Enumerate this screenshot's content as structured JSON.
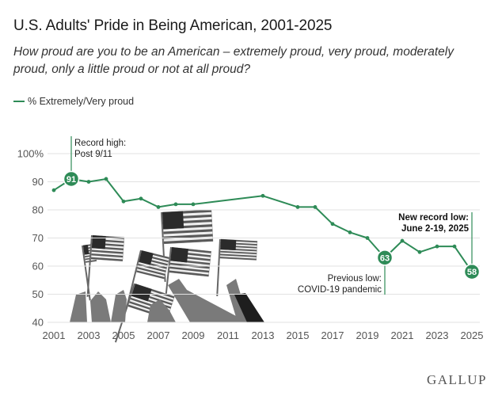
{
  "chart_data": {
    "type": "line",
    "title": "U.S. Adults' Pride in Being American, 2001-2025",
    "subtitle": "How proud are you to be an American – extremely proud, very proud, moderately proud, only a little proud or not at all proud?",
    "series": [
      {
        "name": "% Extremely/Very proud",
        "color": "#2e8b57",
        "x": [
          2001,
          2002,
          2003,
          2004,
          2005,
          2006,
          2007,
          2008,
          2009,
          2013,
          2015,
          2016,
          2017,
          2018,
          2019,
          2020,
          2021,
          2022,
          2023,
          2024,
          2025
        ],
        "values": [
          87,
          91,
          90,
          91,
          83,
          84,
          81,
          82,
          82,
          85,
          81,
          81,
          75,
          72,
          70,
          63,
          69,
          65,
          67,
          67,
          58
        ]
      }
    ],
    "x_ticks": [
      "2001",
      "2003",
      "2005",
      "2007",
      "2009",
      "2011",
      "2013",
      "2015",
      "2017",
      "2019",
      "2021",
      "2023",
      "2025"
    ],
    "y_ticks": [
      "100%",
      "90",
      "80",
      "70",
      "60",
      "50",
      "40"
    ],
    "xlim": [
      2001,
      2025
    ],
    "ylim": [
      40,
      100
    ],
    "highlighted_points": [
      {
        "year": 2002,
        "value": 91,
        "label": "91"
      },
      {
        "year": 2020,
        "value": 63,
        "label": "63"
      },
      {
        "year": 2025,
        "value": 58,
        "label": "58"
      }
    ],
    "annotations": {
      "record_high": [
        "Record high:",
        "Post 9/11"
      ],
      "previous_low": [
        "Previous low:",
        "COVID-19 pandemic"
      ],
      "new_record_low": [
        "New record low:",
        "June 2-19, 2025"
      ]
    }
  },
  "legend": {
    "label": "% Extremely/Very proud"
  },
  "brand": "GALLUP"
}
